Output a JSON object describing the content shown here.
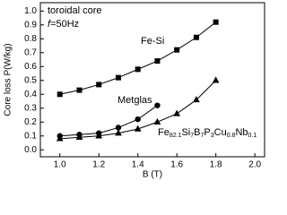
{
  "chart_data": {
    "type": "line",
    "x_label": "B (T)",
    "y_label": "Core loss P(W/kg)",
    "annotation": "toroidal core",
    "frequency_label": {
      "symbol": "f",
      "text": "=50Hz"
    },
    "xlim": [
      0.9,
      2.05
    ],
    "ylim": [
      -0.05,
      1.06
    ],
    "xticks": [
      {
        "value": 1,
        "label": "1.0"
      },
      1.2,
      1.4,
      1.6,
      1.8,
      {
        "value": 2,
        "label": "2.0"
      }
    ],
    "yticks": [
      {
        "value": 0,
        "label": "0.0"
      },
      0.1,
      0.2,
      0.3,
      0.4,
      0.5,
      0.6,
      0.7,
      0.8,
      0.9,
      {
        "value": 1,
        "label": "1.0"
      }
    ],
    "series": [
      {
        "name": "Fe-Si",
        "marker": "square",
        "color": "#000000",
        "x": [
          1.0,
          1.1,
          1.2,
          1.3,
          1.4,
          1.5,
          1.6,
          1.7,
          1.8
        ],
        "values": [
          0.4,
          0.43,
          0.47,
          0.52,
          0.58,
          0.64,
          0.72,
          0.81,
          0.92
        ]
      },
      {
        "name": "Metglas",
        "marker": "circle",
        "color": "#000000",
        "x": [
          1.0,
          1.1,
          1.2,
          1.3,
          1.4,
          1.5
        ],
        "values": [
          0.1,
          0.11,
          0.12,
          0.16,
          0.22,
          0.32
        ]
      },
      {
        "name_parts": [
          [
            "Fe",
            "82.1"
          ],
          [
            "Si",
            "7"
          ],
          [
            "B",
            "7"
          ],
          [
            "P",
            "3"
          ],
          [
            "Cu",
            "0.8"
          ],
          [
            "Nb",
            "0.1"
          ]
        ],
        "marker": "triangle",
        "color": "#000000",
        "x": [
          1.0,
          1.1,
          1.2,
          1.3,
          1.4,
          1.5,
          1.6,
          1.7,
          1.8
        ],
        "values": [
          0.08,
          0.09,
          0.1,
          0.12,
          0.15,
          0.2,
          0.26,
          0.36,
          0.5
        ]
      }
    ]
  }
}
